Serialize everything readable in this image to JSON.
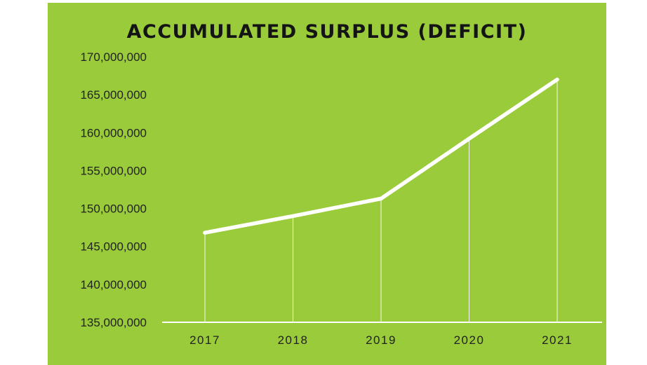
{
  "chart_data": {
    "type": "line",
    "title": "ACCUMULATED SURPLUS (DEFICIT)",
    "xlabel": "",
    "ylabel": "",
    "categories": [
      "2017",
      "2018",
      "2019",
      "2020",
      "2021"
    ],
    "series": [
      {
        "values": [
          146800000,
          149000000,
          151300000,
          159200000,
          167000000
        ]
      }
    ],
    "ylim": [
      135000000,
      170000000
    ],
    "yticks": [
      135000000,
      140000000,
      145000000,
      150000000,
      155000000,
      160000000,
      165000000,
      170000000
    ],
    "ytick_labels": [
      "135,000,000",
      "140,000,000",
      "145,000,000",
      "150,000,000",
      "155,000,000",
      "160,000,000",
      "165,000,000",
      "170,000,000"
    ],
    "grid": false,
    "drop_lines": true,
    "legend": "none",
    "colors": {
      "background": "#9acb3a",
      "line": "#ffffff",
      "axis": "#ffffff",
      "text": "#222222"
    }
  }
}
